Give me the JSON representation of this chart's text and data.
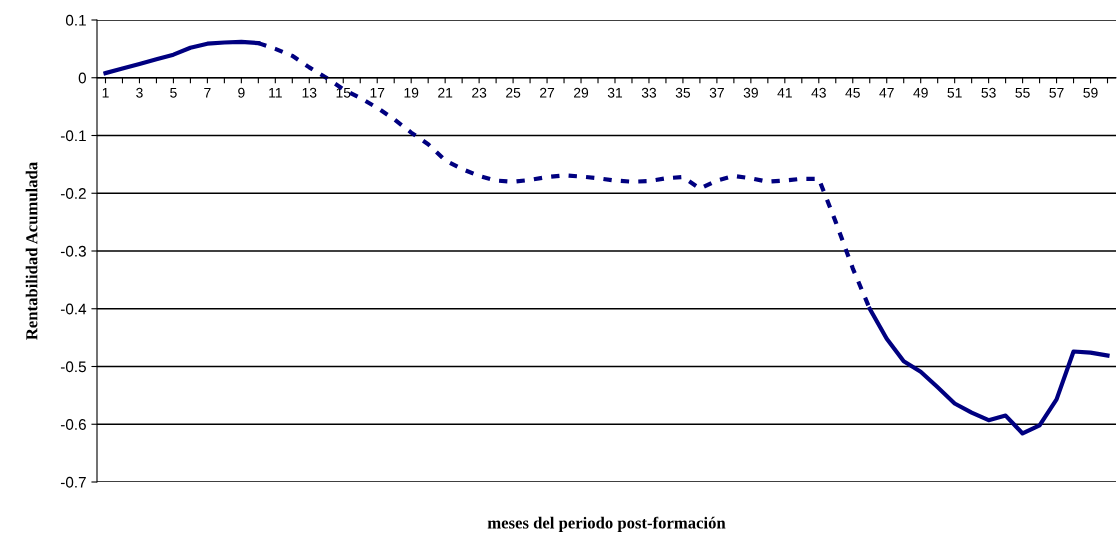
{
  "chart_data": {
    "type": "line",
    "xlabel": "meses del periodo post-formación",
    "ylabel": "Rentabilidad Acumulada",
    "categories": [
      "1",
      null,
      "3",
      null,
      "5",
      null,
      "7",
      null,
      "9",
      null,
      "11",
      null,
      "13",
      null,
      "15",
      null,
      "17",
      null,
      "19",
      null,
      "21",
      null,
      "23",
      null,
      "25",
      null,
      "27",
      null,
      "29",
      null,
      "31",
      null,
      "33",
      null,
      "35",
      null,
      "37",
      null,
      "39",
      null,
      "41",
      null,
      "43",
      null,
      "45",
      null,
      "47",
      null,
      "49",
      null,
      "51",
      null,
      "53",
      null,
      "55",
      null,
      "57",
      null,
      "59",
      null
    ],
    "series": [
      {
        "color": "#000080",
        "line_style": "solid",
        "values": [
          0.008,
          0.016,
          0.024,
          0.032,
          0.04,
          0.052,
          0.059,
          0.061,
          0.062,
          0.06,
          null,
          null,
          null,
          null,
          null,
          null,
          null,
          null,
          null,
          null,
          null,
          null,
          null,
          null,
          null,
          null,
          null,
          null,
          null,
          null,
          null,
          null,
          null,
          null,
          null,
          null,
          null,
          null,
          null,
          null,
          null,
          null,
          null,
          null,
          null,
          -0.4,
          -0.452,
          -0.491,
          -0.509,
          -0.536,
          -0.564,
          -0.58,
          -0.593,
          -0.585,
          -0.616,
          -0.602,
          -0.557,
          -0.474,
          -0.476,
          -0.481
        ]
      },
      {
        "color": "#000080",
        "line_style": "dashed",
        "values": [
          null,
          null,
          null,
          null,
          null,
          null,
          null,
          null,
          null,
          0.06,
          0.05,
          0.038,
          0.018,
          0.0,
          -0.02,
          -0.035,
          -0.052,
          -0.072,
          -0.095,
          -0.115,
          -0.143,
          -0.158,
          -0.17,
          -0.178,
          -0.18,
          -0.177,
          -0.172,
          -0.169,
          -0.171,
          -0.174,
          -0.178,
          -0.18,
          -0.179,
          -0.174,
          -0.172,
          -0.192,
          -0.178,
          -0.17,
          -0.174,
          -0.18,
          -0.178,
          -0.175,
          -0.175,
          -0.25,
          -0.33,
          -0.4,
          null,
          null,
          null,
          null,
          null,
          null,
          null,
          null,
          null,
          null,
          null,
          null,
          null,
          null
        ]
      }
    ],
    "ylim": [
      -0.7,
      0.1
    ],
    "yticks": [
      -0.7,
      -0.6,
      -0.5,
      -0.4,
      -0.3,
      -0.2,
      -0.1,
      {
        "value": 0,
        "label": "0"
      },
      0.1
    ],
    "grid": "y",
    "marker": "none"
  }
}
